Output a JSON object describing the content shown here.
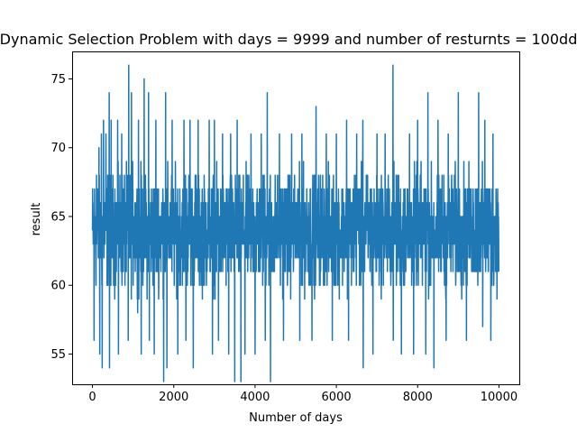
{
  "chart_data": {
    "type": "line",
    "title": "Dynamic Selection Problem with days = 9999 and number of resturnts = 100dd",
    "xlabel": "Number of days",
    "ylabel": "result",
    "xlim": [
      -500,
      10500
    ],
    "ylim": [
      52.8,
      77.0
    ],
    "xticks": [
      0,
      2000,
      4000,
      6000,
      8000,
      10000
    ],
    "yticks": [
      55,
      60,
      65,
      70,
      75
    ],
    "grid": false,
    "line_color": "#1f77b4",
    "series": [
      {
        "x_start": 0,
        "x_end": 9999,
        "band": {
          "typical_min": 58,
          "typical_max": 70,
          "mean": 64
        },
        "peaks": [
          {
            "x": 100,
            "y": 68
          },
          {
            "x": 160,
            "y": 70
          },
          {
            "x": 220,
            "y": 71
          },
          {
            "x": 270,
            "y": 72
          },
          {
            "x": 330,
            "y": 71
          },
          {
            "x": 410,
            "y": 74
          },
          {
            "x": 460,
            "y": 72
          },
          {
            "x": 620,
            "y": 72
          },
          {
            "x": 720,
            "y": 71
          },
          {
            "x": 890,
            "y": 76
          },
          {
            "x": 960,
            "y": 74
          },
          {
            "x": 1130,
            "y": 72
          },
          {
            "x": 1270,
            "y": 75
          },
          {
            "x": 1380,
            "y": 74
          },
          {
            "x": 1560,
            "y": 72
          },
          {
            "x": 1800,
            "y": 74
          },
          {
            "x": 1960,
            "y": 72
          },
          {
            "x": 2250,
            "y": 72
          },
          {
            "x": 2400,
            "y": 72
          },
          {
            "x": 2600,
            "y": 72
          },
          {
            "x": 2870,
            "y": 72
          },
          {
            "x": 3000,
            "y": 72
          },
          {
            "x": 3200,
            "y": 71
          },
          {
            "x": 3400,
            "y": 71
          },
          {
            "x": 3560,
            "y": 72
          },
          {
            "x": 3900,
            "y": 71
          },
          {
            "x": 4150,
            "y": 71
          },
          {
            "x": 4300,
            "y": 74
          },
          {
            "x": 4600,
            "y": 71
          },
          {
            "x": 4900,
            "y": 71
          },
          {
            "x": 5150,
            "y": 71
          },
          {
            "x": 5500,
            "y": 73
          },
          {
            "x": 5750,
            "y": 71
          },
          {
            "x": 6000,
            "y": 71
          },
          {
            "x": 6250,
            "y": 72
          },
          {
            "x": 6500,
            "y": 71
          },
          {
            "x": 6650,
            "y": 72
          },
          {
            "x": 7000,
            "y": 71
          },
          {
            "x": 7200,
            "y": 71
          },
          {
            "x": 7390,
            "y": 76
          },
          {
            "x": 7600,
            "y": 72
          },
          {
            "x": 7800,
            "y": 71
          },
          {
            "x": 8000,
            "y": 72
          },
          {
            "x": 8250,
            "y": 74
          },
          {
            "x": 8500,
            "y": 72
          },
          {
            "x": 8750,
            "y": 71
          },
          {
            "x": 9000,
            "y": 74
          },
          {
            "x": 9200,
            "y": 73
          },
          {
            "x": 9500,
            "y": 74
          },
          {
            "x": 9650,
            "y": 72
          },
          {
            "x": 9850,
            "y": 71
          }
        ],
        "troughs": [
          {
            "x": 40,
            "y": 56
          },
          {
            "x": 180,
            "y": 55
          },
          {
            "x": 240,
            "y": 54
          },
          {
            "x": 420,
            "y": 54
          },
          {
            "x": 640,
            "y": 55
          },
          {
            "x": 880,
            "y": 56
          },
          {
            "x": 1200,
            "y": 55
          },
          {
            "x": 1400,
            "y": 56
          },
          {
            "x": 1520,
            "y": 55
          },
          {
            "x": 1750,
            "y": 53
          },
          {
            "x": 1830,
            "y": 54
          },
          {
            "x": 2100,
            "y": 55
          },
          {
            "x": 2300,
            "y": 56
          },
          {
            "x": 2480,
            "y": 54
          },
          {
            "x": 2950,
            "y": 55
          },
          {
            "x": 3100,
            "y": 56
          },
          {
            "x": 3350,
            "y": 55
          },
          {
            "x": 3500,
            "y": 53
          },
          {
            "x": 3650,
            "y": 53
          },
          {
            "x": 3750,
            "y": 55
          },
          {
            "x": 4000,
            "y": 55
          },
          {
            "x": 4250,
            "y": 56
          },
          {
            "x": 4380,
            "y": 53
          },
          {
            "x": 4700,
            "y": 56
          },
          {
            "x": 5100,
            "y": 56
          },
          {
            "x": 5400,
            "y": 56
          },
          {
            "x": 5900,
            "y": 56
          },
          {
            "x": 6300,
            "y": 56
          },
          {
            "x": 6660,
            "y": 54
          },
          {
            "x": 6900,
            "y": 55
          },
          {
            "x": 7400,
            "y": 56
          },
          {
            "x": 7600,
            "y": 55
          },
          {
            "x": 7900,
            "y": 55
          },
          {
            "x": 8200,
            "y": 55
          },
          {
            "x": 8400,
            "y": 54
          },
          {
            "x": 8700,
            "y": 56
          },
          {
            "x": 9200,
            "y": 56
          },
          {
            "x": 9600,
            "y": 57
          },
          {
            "x": 9800,
            "y": 56
          }
        ]
      }
    ]
  }
}
